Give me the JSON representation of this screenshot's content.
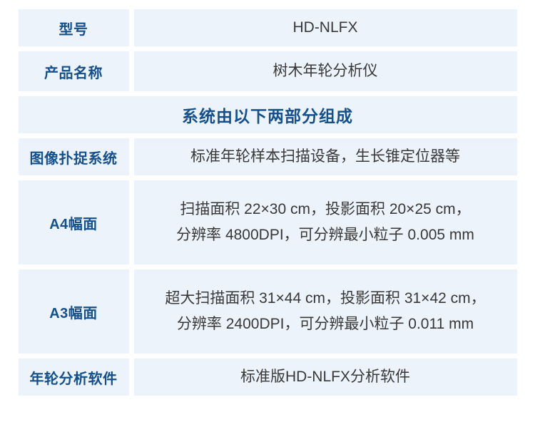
{
  "colors": {
    "cell_bg": "#ecf3fa",
    "label_blue": "#14508c",
    "body_text": "#383838",
    "page_bg": "#ffffff"
  },
  "table": {
    "rows": [
      {
        "label": "型号",
        "value": "HD-NLFX"
      },
      {
        "label": "产品名称",
        "value": "树木年轮分析仪"
      },
      {
        "section_header": "系统由以下两部分组成"
      },
      {
        "label": "图像扑捉系统",
        "value": "标准年轮样本扫描设备，生长锥定位器等"
      },
      {
        "label": "A4幅面",
        "value": "扫描面积 22×30 cm，投影面积 20×25 cm，\n分辨率 4800DPI，可分辨最小粒子 0.005 mm"
      },
      {
        "label": "A3幅面",
        "value": "超大扫描面积 31×44 cm，投影面积 31×42 cm，\n分辨率 2400DPI，可分辨最小粒子 0.011 mm"
      },
      {
        "label": "年轮分析软件",
        "value": "标准版HD-NLFX分析软件"
      }
    ]
  }
}
